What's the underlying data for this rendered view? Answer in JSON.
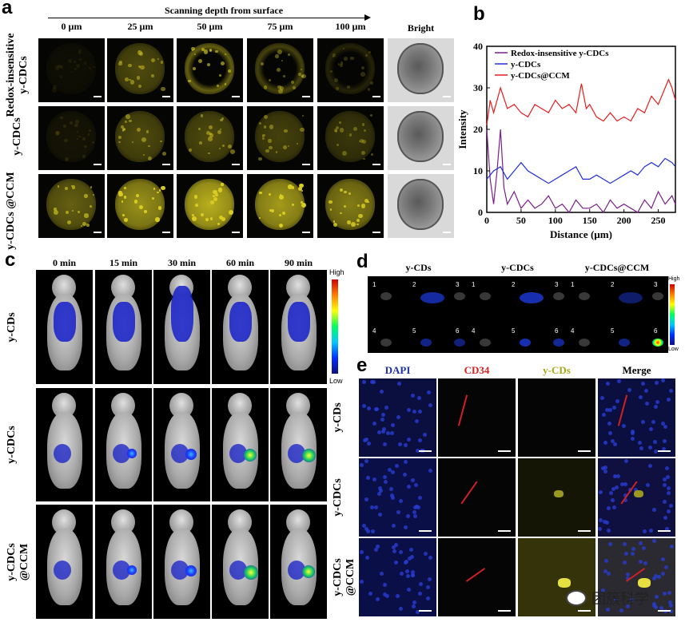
{
  "panel_a": {
    "label": "a",
    "depth_title": "Scanning depth from surface",
    "columns": [
      "0 µm",
      "25 µm",
      "50 µm",
      "75 µm",
      "100 µm",
      "Bright"
    ],
    "rows": [
      "Redox-insensitive y-CDCs",
      "y-CDCs",
      "y-CDCs @CCM"
    ],
    "fluorescence_color": "#d8cc22"
  },
  "panel_b": {
    "label": "b",
    "chart_data": {
      "type": "line",
      "xlabel": "Distance (µm)",
      "ylabel": "Intensity",
      "xlim": [
        0,
        275
      ],
      "ylim": [
        0,
        40
      ],
      "xticks": [
        0,
        50,
        100,
        150,
        200,
        250
      ],
      "yticks": [
        0,
        10,
        20,
        30,
        40
      ],
      "legend_position": "top",
      "series": [
        {
          "name": "Redox-insensitive y-CDCs",
          "color": "#7b1f8a",
          "x": [
            0,
            5,
            10,
            15,
            20,
            25,
            30,
            40,
            50,
            60,
            70,
            80,
            90,
            100,
            110,
            120,
            130,
            140,
            150,
            160,
            170,
            180,
            190,
            200,
            210,
            220,
            230,
            240,
            250,
            260,
            270,
            275
          ],
          "y": [
            20,
            8,
            2,
            10,
            20,
            6,
            2,
            5,
            1,
            3,
            1,
            2,
            4,
            1,
            2,
            0,
            3,
            1,
            1,
            2,
            0,
            3,
            1,
            2,
            1,
            0,
            3,
            1,
            5,
            2,
            4,
            2
          ]
        },
        {
          "name": "y-CDCs",
          "color": "#1f2fdc",
          "x": [
            0,
            10,
            20,
            30,
            40,
            50,
            60,
            70,
            80,
            90,
            100,
            110,
            120,
            130,
            140,
            150,
            160,
            170,
            180,
            190,
            200,
            210,
            220,
            230,
            240,
            250,
            260,
            270,
            275
          ],
          "y": [
            8,
            10,
            11,
            8,
            10,
            12,
            10,
            9,
            8,
            7,
            8,
            9,
            10,
            11,
            8,
            8,
            9,
            8,
            7,
            8,
            9,
            10,
            9,
            11,
            12,
            11,
            13,
            12,
            11
          ]
        },
        {
          "name": "y-CDCs@CCM",
          "color": "#e81d1d",
          "x": [
            0,
            5,
            10,
            20,
            30,
            40,
            50,
            60,
            70,
            80,
            90,
            100,
            110,
            120,
            130,
            138,
            145,
            150,
            160,
            170,
            180,
            190,
            200,
            210,
            220,
            230,
            240,
            250,
            260,
            265,
            270,
            275
          ],
          "y": [
            21,
            27,
            24,
            30,
            25,
            26,
            24,
            23,
            26,
            25,
            24,
            27,
            25,
            26,
            24,
            31,
            25,
            26,
            23,
            22,
            24,
            22,
            23,
            22,
            25,
            24,
            28,
            26,
            30,
            32,
            30,
            27
          ]
        }
      ]
    }
  },
  "panel_c": {
    "label": "c",
    "columns": [
      "0 min",
      "15 min",
      "30 min",
      "60 min",
      "90 min"
    ],
    "rows": [
      "y-CDs",
      "y-CDCs",
      "y-CDCs @CCM"
    ],
    "scale_high": "High",
    "scale_low": "Low"
  },
  "panel_d": {
    "label": "d",
    "columns": [
      "y-CDs",
      "y-CDCs",
      "y-CDCs@CCM"
    ],
    "organ_numbers": [
      "1",
      "2",
      "3",
      "4",
      "5",
      "6"
    ],
    "scale_high": "High",
    "scale_low": "Low"
  },
  "panel_e": {
    "label": "e",
    "columns": [
      {
        "label": "DAPI",
        "color": "#1f2fa8"
      },
      {
        "label": "CD34",
        "color": "#d42020"
      },
      {
        "label": "y-CDs",
        "color": "#a8a816"
      },
      {
        "label": "Merge",
        "color": "#000000"
      }
    ],
    "rows": [
      "y-CDs",
      "y-CDCs",
      "y-CDCs @CCM"
    ]
  },
  "watermark": "团簇科学"
}
